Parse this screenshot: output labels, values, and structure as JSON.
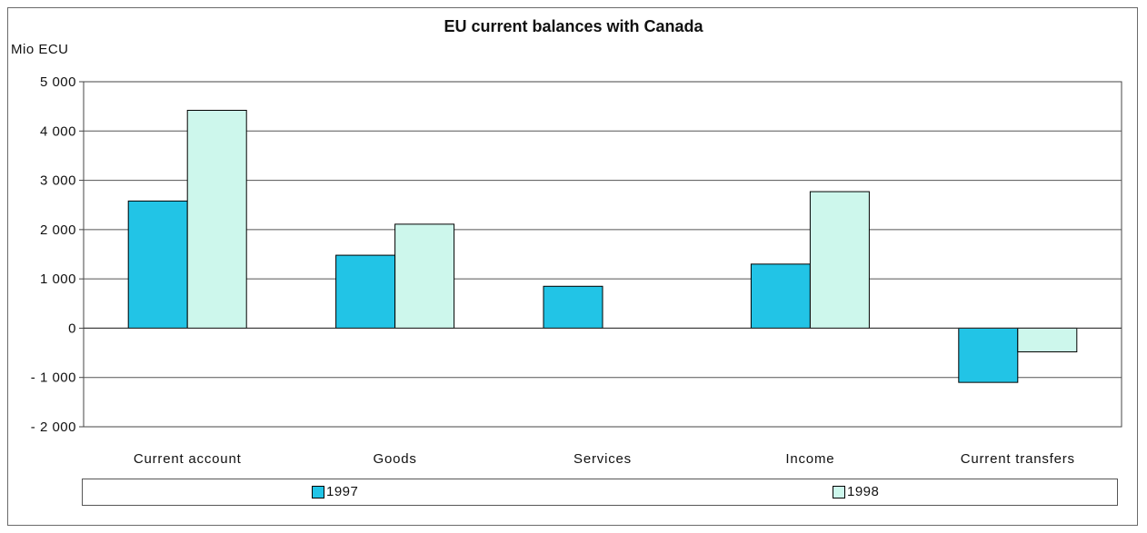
{
  "chart_data": {
    "type": "bar",
    "title": "EU current balances with Canada",
    "unit_label": "Mio ECU",
    "categories": [
      "Current account",
      "Goods",
      "Services",
      "Income",
      "Current transfers"
    ],
    "series": [
      {
        "name": "1997",
        "color": "#22c4e6",
        "values": [
          2580,
          1480,
          850,
          1300,
          -1100
        ]
      },
      {
        "name": "1998",
        "color": "#cdf7ec",
        "values": [
          4420,
          2110,
          0,
          2770,
          -480
        ]
      }
    ],
    "ylim": [
      -2000,
      5000
    ],
    "yticks": [
      5000,
      4000,
      3000,
      2000,
      1000,
      0,
      -1000,
      -2000
    ],
    "ytick_labels": [
      "5 000",
      "4 000",
      "3 000",
      "2 000",
      "1 000",
      "0",
      "- 1 000",
      "- 2 000"
    ],
    "grid": true,
    "legend_position": "bottom"
  }
}
